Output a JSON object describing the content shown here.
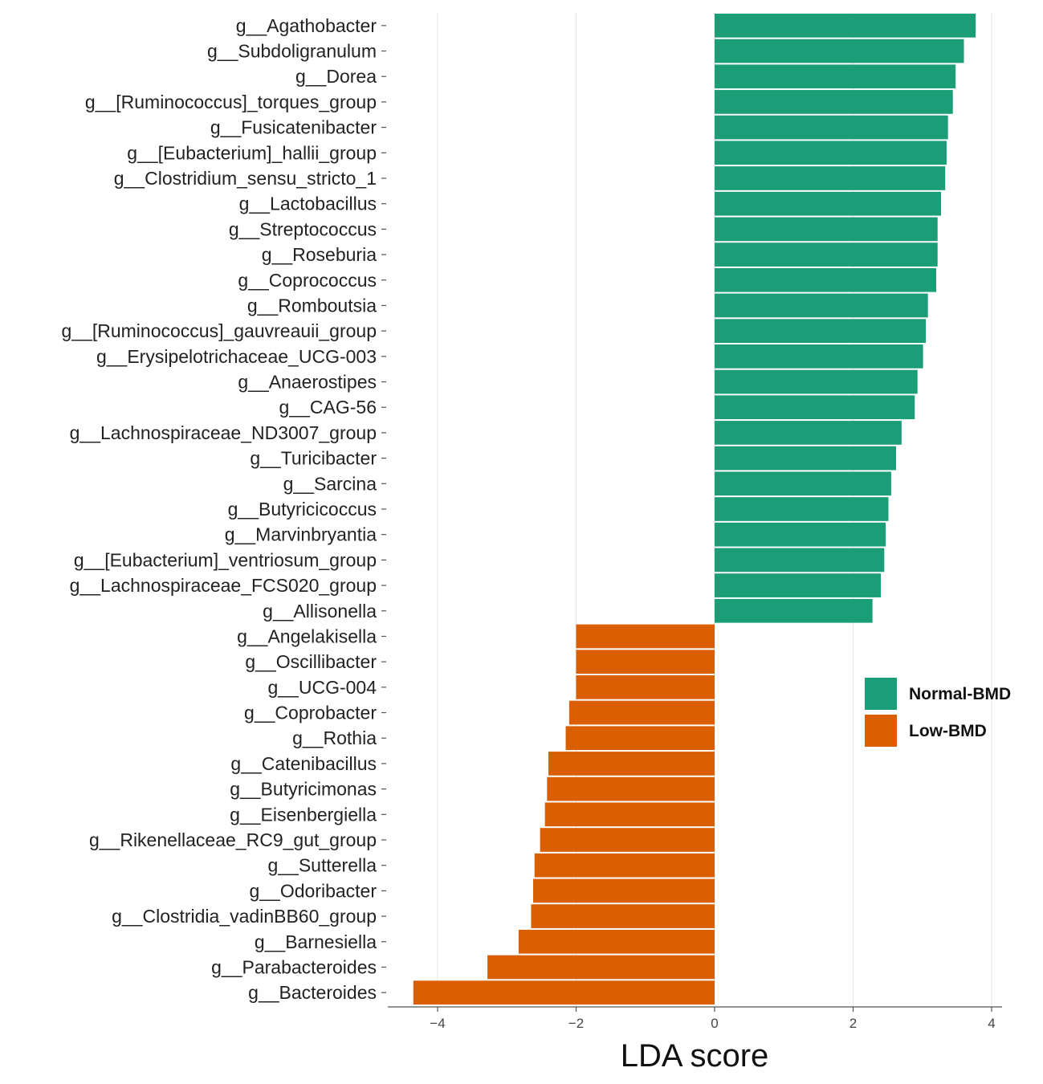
{
  "chart_data": {
    "type": "bar",
    "orientation": "horizontal",
    "xlabel": "LDA score",
    "xlim": [
      -4.5,
      4.15
    ],
    "xticks": [
      -4,
      -2,
      0,
      2,
      4
    ],
    "grid": true,
    "legend_position": "right",
    "legend": [
      {
        "name": "Normal-BMD",
        "color": "#1b9e77"
      },
      {
        "name": "Low-BMD",
        "color": "#d95f02"
      }
    ],
    "bars": [
      {
        "label": "g__Agathobacter",
        "value": 3.77,
        "group": "Normal-BMD"
      },
      {
        "label": "g__Subdoligranulum",
        "value": 3.6,
        "group": "Normal-BMD"
      },
      {
        "label": "g__Dorea",
        "value": 3.48,
        "group": "Normal-BMD"
      },
      {
        "label": "g__[Ruminococcus]_torques_group",
        "value": 3.44,
        "group": "Normal-BMD"
      },
      {
        "label": "g__Fusicatenibacter",
        "value": 3.37,
        "group": "Normal-BMD"
      },
      {
        "label": "g__[Eubacterium]_hallii_group",
        "value": 3.35,
        "group": "Normal-BMD"
      },
      {
        "label": "g__Clostridium_sensu_stricto_1",
        "value": 3.33,
        "group": "Normal-BMD"
      },
      {
        "label": "g__Lactobacillus",
        "value": 3.27,
        "group": "Normal-BMD"
      },
      {
        "label": "g__Streptococcus",
        "value": 3.22,
        "group": "Normal-BMD"
      },
      {
        "label": "g__Roseburia",
        "value": 3.22,
        "group": "Normal-BMD"
      },
      {
        "label": "g__Coprococcus",
        "value": 3.2,
        "group": "Normal-BMD"
      },
      {
        "label": "g__Romboutsia",
        "value": 3.08,
        "group": "Normal-BMD"
      },
      {
        "label": "g__[Ruminococcus]_gauvreauii_group",
        "value": 3.05,
        "group": "Normal-BMD"
      },
      {
        "label": "g__Erysipelotrichaceae_UCG-003",
        "value": 3.01,
        "group": "Normal-BMD"
      },
      {
        "label": "g__Anaerostipes",
        "value": 2.93,
        "group": "Normal-BMD"
      },
      {
        "label": "g__CAG-56",
        "value": 2.89,
        "group": "Normal-BMD"
      },
      {
        "label": "g__Lachnospiraceae_ND3007_group",
        "value": 2.7,
        "group": "Normal-BMD"
      },
      {
        "label": "g__Turicibacter",
        "value": 2.62,
        "group": "Normal-BMD"
      },
      {
        "label": "g__Sarcina",
        "value": 2.55,
        "group": "Normal-BMD"
      },
      {
        "label": "g__Butyricicoccus",
        "value": 2.51,
        "group": "Normal-BMD"
      },
      {
        "label": "g__Marvinbryantia",
        "value": 2.47,
        "group": "Normal-BMD"
      },
      {
        "label": "g__[Eubacterium]_ventriosum_group",
        "value": 2.45,
        "group": "Normal-BMD"
      },
      {
        "label": "g__Lachnospiraceae_FCS020_group",
        "value": 2.4,
        "group": "Normal-BMD"
      },
      {
        "label": "g__Allisonella",
        "value": 2.28,
        "group": "Normal-BMD"
      },
      {
        "label": "g__Angelakisella",
        "value": -2.0,
        "group": "Low-BMD"
      },
      {
        "label": "g__Oscillibacter",
        "value": -2.0,
        "group": "Low-BMD"
      },
      {
        "label": "g__UCG-004",
        "value": -2.0,
        "group": "Low-BMD"
      },
      {
        "label": "g__Coprobacter",
        "value": -2.1,
        "group": "Low-BMD"
      },
      {
        "label": "g__Rothia",
        "value": -2.15,
        "group": "Low-BMD"
      },
      {
        "label": "g__Catenibacillus",
        "value": -2.4,
        "group": "Low-BMD"
      },
      {
        "label": "g__Butyricimonas",
        "value": -2.42,
        "group": "Low-BMD"
      },
      {
        "label": "g__Eisenbergiella",
        "value": -2.45,
        "group": "Low-BMD"
      },
      {
        "label": "g__Rikenellaceae_RC9_gut_group",
        "value": -2.52,
        "group": "Low-BMD"
      },
      {
        "label": "g__Sutterella",
        "value": -2.6,
        "group": "Low-BMD"
      },
      {
        "label": "g__Odoribacter",
        "value": -2.62,
        "group": "Low-BMD"
      },
      {
        "label": "g__Clostridia_vadinBB60_group",
        "value": -2.65,
        "group": "Low-BMD"
      },
      {
        "label": "g__Barnesiella",
        "value": -2.83,
        "group": "Low-BMD"
      },
      {
        "label": "g__Parabacteroides",
        "value": -3.28,
        "group": "Low-BMD"
      },
      {
        "label": "g__Bacteroides",
        "value": -4.35,
        "group": "Low-BMD"
      }
    ]
  }
}
